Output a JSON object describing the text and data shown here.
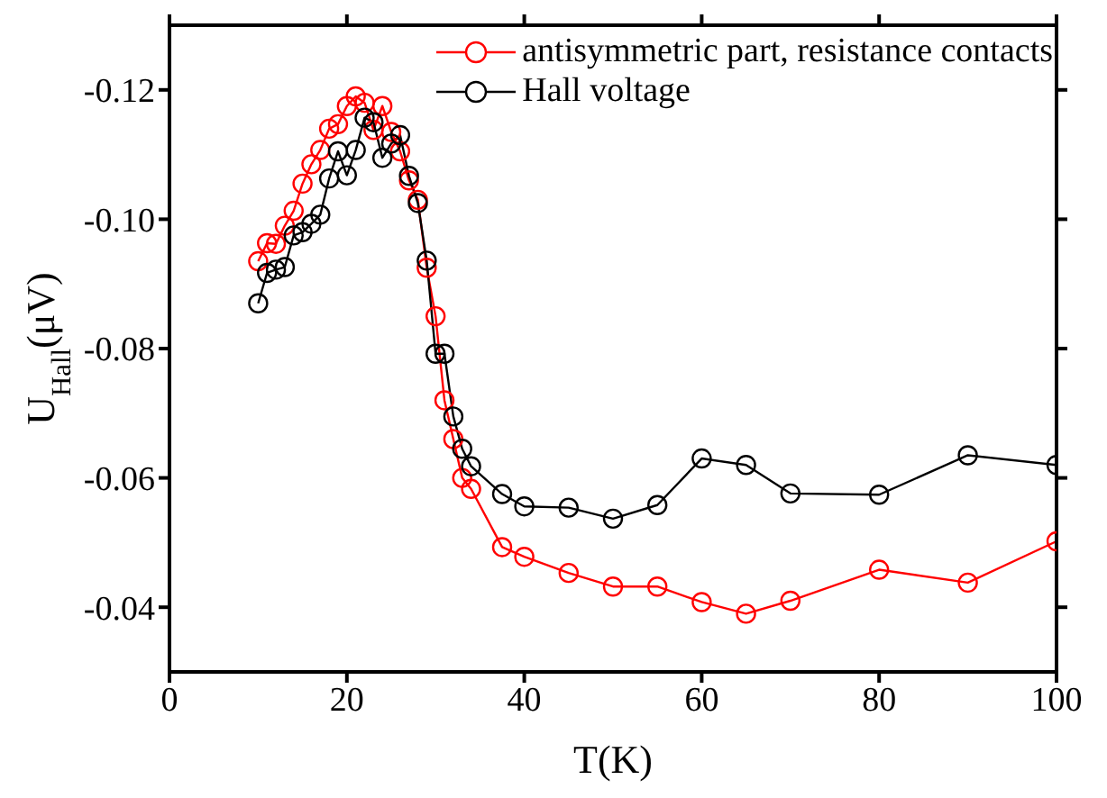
{
  "chart_data": {
    "type": "line",
    "xlabel": "T(K)",
    "ylabel": "U$_{Hall}$(μV)",
    "xlim": [
      0,
      100
    ],
    "xticks": [
      0,
      20,
      40,
      60,
      80,
      100
    ],
    "ylim": [
      -0.03,
      -0.13
    ],
    "yticks": [
      -0.04,
      -0.06,
      -0.08,
      {
        "value": -0.1,
        "label": "-0.10"
      },
      -0.12
    ],
    "legend": "top right",
    "marker": "circle",
    "line_style": "solid",
    "grid": false,
    "x": [
      10,
      11,
      12,
      13,
      14,
      15,
      16,
      17,
      18,
      19,
      20,
      21,
      22,
      23,
      24,
      25,
      26,
      27,
      28,
      29,
      30,
      31,
      32,
      33,
      34,
      37.5,
      40,
      45,
      50,
      55,
      60,
      65,
      70,
      80,
      90,
      100
    ],
    "series": [
      {
        "name": "antisymmetric part, resistance contacts",
        "color": "#ff0000",
        "values": [
          -0.0935,
          -0.0963,
          -0.0962,
          -0.099,
          -0.1013,
          -0.1055,
          -0.1085,
          -0.1107,
          -0.114,
          -0.1147,
          -0.1175,
          -0.119,
          -0.118,
          -0.1138,
          -0.1175,
          -0.1135,
          -0.1105,
          -0.106,
          -0.103,
          -0.0925,
          -0.085,
          -0.072,
          -0.066,
          -0.06,
          -0.0583,
          -0.0493,
          -0.0478,
          -0.0453,
          -0.0432,
          -0.0432,
          -0.0408,
          -0.039,
          -0.041,
          -0.0458,
          -0.0438,
          -0.0502
        ]
      },
      {
        "name": "Hall voltage",
        "color": "#000000",
        "values": [
          -0.087,
          -0.0917,
          -0.0922,
          -0.0926,
          -0.0975,
          -0.098,
          -0.0993,
          -0.1007,
          -0.1063,
          -0.1105,
          -0.1068,
          -0.1107,
          -0.1157,
          -0.115,
          -0.1095,
          -0.1117,
          -0.113,
          -0.1067,
          -0.1025,
          -0.0936,
          -0.0792,
          -0.0792,
          -0.0695,
          -0.0645,
          -0.0618,
          -0.0575,
          -0.0556,
          -0.0554,
          -0.0537,
          -0.0558,
          -0.063,
          -0.062,
          -0.0576,
          -0.0574,
          -0.0635,
          -0.062
        ]
      }
    ]
  }
}
